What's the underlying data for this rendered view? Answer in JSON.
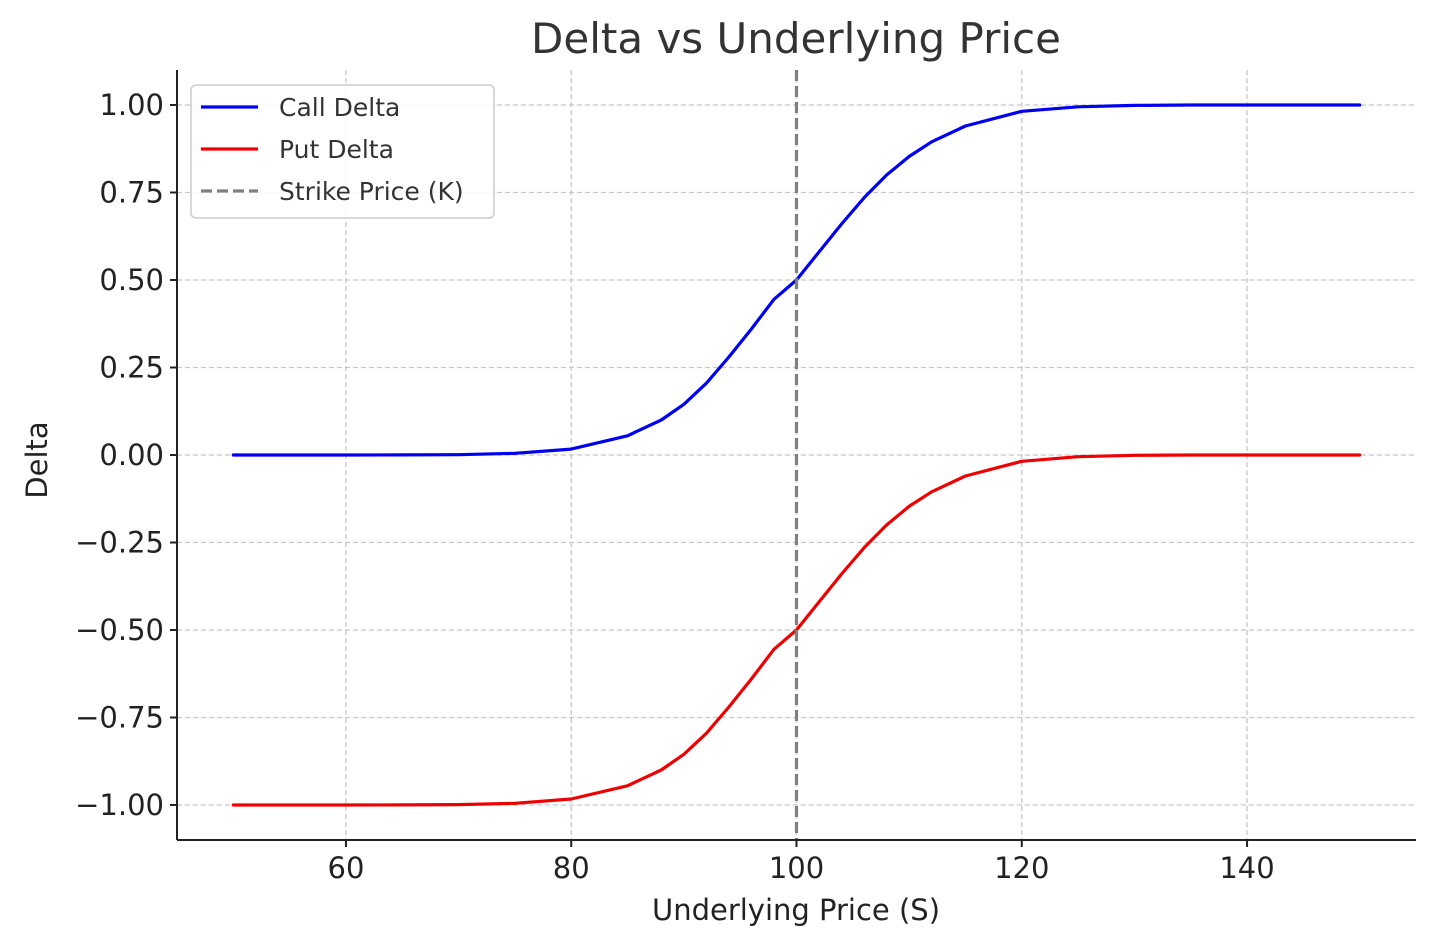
{
  "chart_data": {
    "type": "line",
    "title": "Delta vs Underlying Price",
    "xlabel": "Underlying Price (S)",
    "ylabel": "Delta",
    "xlim": [
      45,
      155
    ],
    "ylim": [
      -1.1,
      1.1
    ],
    "xticks": [
      60,
      80,
      100,
      120,
      140
    ],
    "xtick_labels": [
      "60",
      "80",
      "100",
      "120",
      "140"
    ],
    "yticks": [
      1.0,
      0.75,
      0.5,
      0.25,
      0.0,
      -0.25,
      -0.5,
      -0.75,
      -1.0
    ],
    "ytick_labels": [
      "1.00",
      "0.75",
      "0.50",
      "0.25",
      "0.00",
      "−0.25",
      "−0.50",
      "−0.75",
      "−1.00"
    ],
    "grid": true,
    "legend_position": "top-left",
    "x": [
      50,
      55,
      60,
      65,
      70,
      75,
      80,
      85,
      88,
      90,
      92,
      94,
      96,
      98,
      100,
      102,
      104,
      106,
      108,
      110,
      112,
      115,
      120,
      125,
      130,
      135,
      140,
      145,
      150
    ],
    "series": [
      {
        "name": "Call Delta",
        "color": "#0000ee",
        "values": [
          0.0,
          0.0,
          0.0,
          0.0002,
          0.001,
          0.005,
          0.017,
          0.055,
          0.1,
          0.145,
          0.205,
          0.28,
          0.36,
          0.445,
          0.5,
          0.58,
          0.66,
          0.735,
          0.8,
          0.853,
          0.895,
          0.94,
          0.982,
          0.995,
          0.999,
          1.0,
          1.0,
          1.0,
          1.0
        ]
      },
      {
        "name": "Put Delta",
        "color": "#ee0000",
        "values": [
          -1.0,
          -1.0,
          -1.0,
          -0.9998,
          -0.999,
          -0.995,
          -0.983,
          -0.945,
          -0.9,
          -0.855,
          -0.795,
          -0.72,
          -0.64,
          -0.555,
          -0.5,
          -0.42,
          -0.34,
          -0.265,
          -0.2,
          -0.147,
          -0.105,
          -0.06,
          -0.018,
          -0.005,
          -0.001,
          0.0,
          0.0,
          0.0,
          0.0
        ]
      }
    ],
    "reference_lines": [
      {
        "name": "Strike Price (K)",
        "orientation": "vertical",
        "x": 100,
        "color": "#808080",
        "style": "dashed"
      }
    ]
  }
}
